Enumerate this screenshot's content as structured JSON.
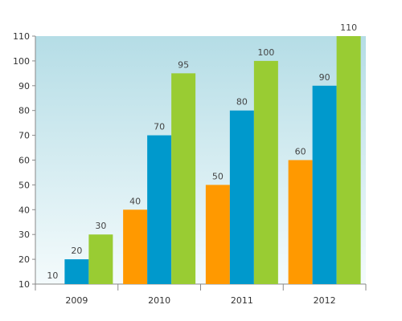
{
  "chart_data": {
    "type": "bar",
    "categories": [
      "2009",
      "2010",
      "2011",
      "2012"
    ],
    "series": [
      {
        "color": "#ff9900",
        "values": [
          10,
          40,
          50,
          60
        ]
      },
      {
        "color": "#0099cc",
        "values": [
          20,
          70,
          80,
          90
        ]
      },
      {
        "color": "#99cc33",
        "values": [
          30,
          95,
          100,
          110
        ]
      }
    ],
    "ylim": [
      10,
      110
    ],
    "yticks": [
      10,
      20,
      30,
      40,
      50,
      60,
      70,
      80,
      90,
      100,
      110
    ],
    "title": "",
    "xlabel": "",
    "ylabel": "",
    "legend": "none",
    "grid": false,
    "background_gradient": [
      "#b5dde6",
      "#f4fbfc"
    ]
  }
}
